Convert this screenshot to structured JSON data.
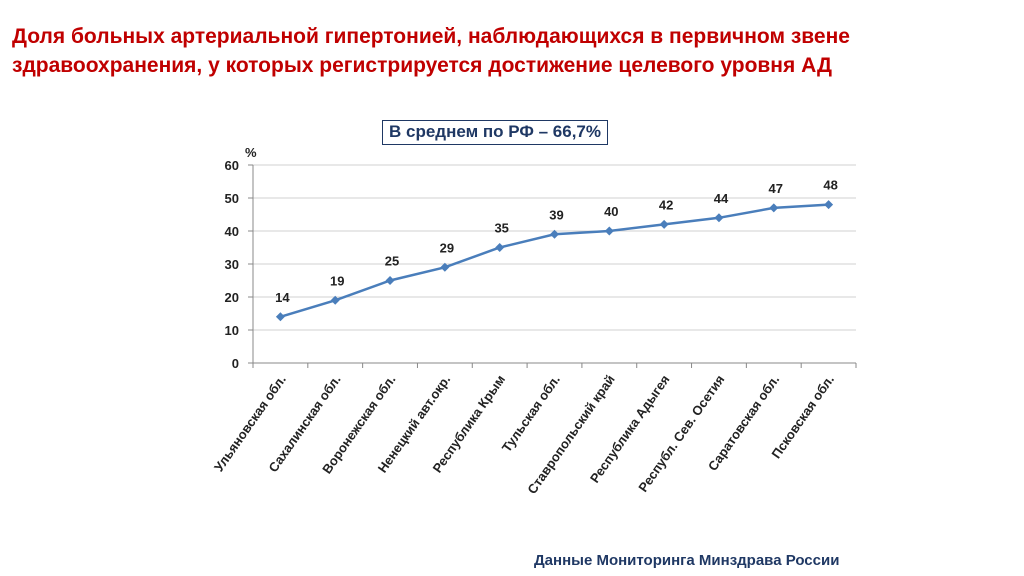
{
  "slide": {
    "title": "Доля больных артериальной гипертонией, наблюдающихся в первичном звене здравоохранения, у которых регистрируется достижение целевого уровня АД",
    "average_box": "В среднем по РФ – 66,7%",
    "source": "Данные Мониторинга Минздрава России",
    "accent_color": "#c00000",
    "line_color": "#4a7ebb"
  },
  "chart_data": {
    "type": "line",
    "title": "",
    "ylabel": "%",
    "xlabel": "",
    "ylim": [
      0,
      60
    ],
    "yticks": [
      0,
      10,
      20,
      30,
      40,
      50,
      60
    ],
    "grid": true,
    "categories": [
      "Ульяновская обл.",
      "Сахалинская обл.",
      "Воронежская обл.",
      "Ненецкий авт.окр.",
      "Республика Крым",
      "Тульская обл.",
      "Ставропольский край",
      "Республика Адыгея",
      "Республ. Сев. Осетия",
      "Саратовская обл.",
      "Псковская обл."
    ],
    "values": [
      14,
      19,
      25,
      29,
      35,
      39,
      40,
      42,
      44,
      47,
      48
    ],
    "data_labels": [
      "14",
      "19",
      "25",
      "29",
      "35",
      "39",
      "40",
      "42",
      "44",
      "47",
      "48"
    ]
  }
}
